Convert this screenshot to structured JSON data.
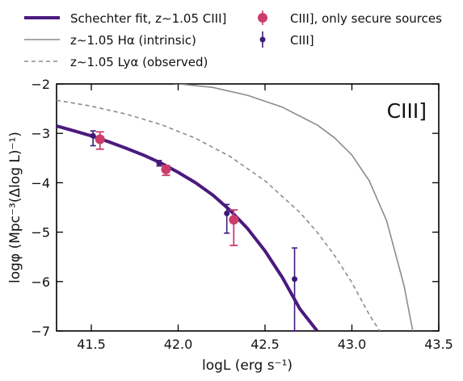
{
  "chart_data": {
    "type": "line",
    "title": "",
    "xlabel": "logL (erg s⁻¹)",
    "ylabel": "logφ (Mpc⁻³(Δlog L)⁻¹)",
    "xlim": [
      41.3,
      43.5
    ],
    "ylim": [
      -7,
      -2
    ],
    "xticks": [
      41.5,
      42.0,
      42.5,
      43.0,
      43.5
    ],
    "xtick_labels": [
      "41.5",
      "42.0",
      "42.5",
      "43.0",
      "43.5"
    ],
    "yticks": [
      -2,
      -3,
      -4,
      -5,
      -6,
      -7
    ],
    "ytick_labels": [
      "−2",
      "−3",
      "−4",
      "−5",
      "−6",
      "−7"
    ],
    "annotation": "CIII]",
    "grid": false,
    "legend_position": "top (above plot, two columns)",
    "series": [
      {
        "name": "Schechter fit, z∼1.05 CIII]",
        "kind": "line",
        "color": "#4b1a7e",
        "x": [
          41.3,
          41.4,
          41.5,
          41.6,
          41.7,
          41.8,
          41.9,
          42.0,
          42.1,
          42.2,
          42.3,
          42.4,
          42.5,
          42.6,
          42.7,
          42.8
        ],
        "y": [
          -2.85,
          -2.95,
          -3.05,
          -3.17,
          -3.3,
          -3.44,
          -3.6,
          -3.79,
          -4.0,
          -4.25,
          -4.56,
          -4.93,
          -5.38,
          -5.92,
          -6.55,
          -7.0
        ]
      },
      {
        "name": "z∼1.05 Hα (intrinsic)",
        "kind": "line",
        "color": "#8c8c8c",
        "x": [
          41.95,
          42.2,
          42.4,
          42.6,
          42.8,
          42.9,
          43.0,
          43.1,
          43.2,
          43.3,
          43.35
        ],
        "y": [
          -1.98,
          -2.07,
          -2.23,
          -2.47,
          -2.83,
          -3.09,
          -3.44,
          -3.96,
          -4.77,
          -6.08,
          -7.0
        ]
      },
      {
        "name": "z∼1.05 Lyα (observed)",
        "kind": "dashed",
        "color": "#8c8c8c",
        "x": [
          41.3,
          41.5,
          41.7,
          41.9,
          42.1,
          42.3,
          42.5,
          42.7,
          42.8,
          42.9,
          43.0,
          43.1,
          43.16
        ],
        "y": [
          -2.33,
          -2.45,
          -2.61,
          -2.82,
          -3.1,
          -3.47,
          -3.96,
          -4.6,
          -5.0,
          -5.47,
          -6.02,
          -6.67,
          -7.0
        ]
      },
      {
        "name": "CIII], only secure sources",
        "kind": "points",
        "color": "#cc3d6b",
        "x": [
          41.55,
          41.93,
          42.32
        ],
        "y": [
          -3.12,
          -3.73,
          -4.75
        ],
        "y_err_low": [
          0.2,
          0.12,
          0.52
        ],
        "y_err_high": [
          0.15,
          0.08,
          0.2
        ]
      },
      {
        "name": "CIII]",
        "kind": "points",
        "color": "#3f1a78",
        "x": [
          41.51,
          41.89,
          42.28,
          42.67
        ],
        "y": [
          -3.05,
          -3.6,
          -4.62,
          -5.95
        ],
        "y_err_low": [
          0.2,
          0.06,
          0.4,
          1.05
        ],
        "y_err_high": [
          0.1,
          0.05,
          0.18,
          0.63
        ]
      }
    ]
  }
}
